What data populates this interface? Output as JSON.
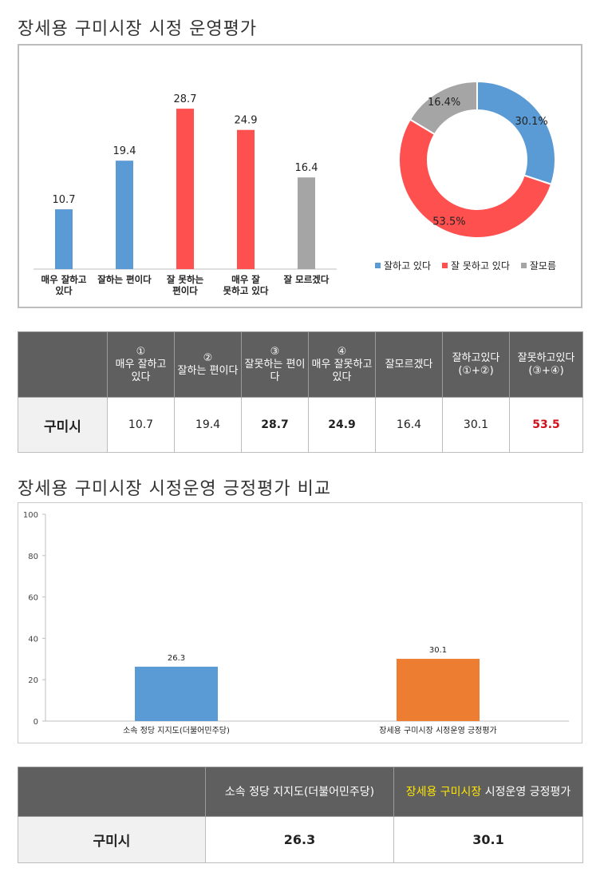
{
  "section1": {
    "title": "장세용 구미시장 시정 운영평가"
  },
  "section2": {
    "title": "장세용 구미시장 시정운영 긍정평가 비교"
  },
  "colors": {
    "blue": "#5b9bd5",
    "red": "#ff5050",
    "gray": "#a5a5a5",
    "orange": "#ed7d31",
    "dark_header": "#5f5f5f",
    "highlight": "#ffe600",
    "red_text": "#d0111b"
  },
  "chart_data": [
    {
      "type": "bar",
      "categories": [
        "매우 잘하고 있다",
        "잘하는 편이다",
        "잘 못하는 편이다",
        "매우 잘 못하고 있다",
        "잘 모르겠다"
      ],
      "values": [
        10.7,
        19.4,
        28.7,
        24.9,
        16.4
      ],
      "data_labels": [
        "10.7",
        "19.4",
        "28.7",
        "24.9",
        "16.4"
      ],
      "bar_colors": [
        "#5b9bd5",
        "#5b9bd5",
        "#ff5050",
        "#ff5050",
        "#a5a5a5"
      ],
      "ylim": [
        0,
        35
      ],
      "grid": false,
      "xlabel": "",
      "ylabel": ""
    },
    {
      "type": "pie",
      "donut": true,
      "labels": [
        "잘하고 있다",
        "잘 못하고 있다",
        "잘모름"
      ],
      "values": [
        30.1,
        53.5,
        16.4
      ],
      "data_labels": [
        "30.1%",
        "53.5%",
        "16.4%"
      ],
      "colors": [
        "#5b9bd5",
        "#ff5050",
        "#a5a5a5"
      ],
      "legend": "bottom"
    },
    {
      "type": "bar",
      "categories": [
        "소속 정당 지지도(더불어민주당)",
        "장세용 구미시장 시정운영 긍정평가"
      ],
      "values": [
        26.3,
        30.1
      ],
      "data_labels": [
        "26.3",
        "30.1"
      ],
      "bar_colors": [
        "#5b9bd5",
        "#ed7d31"
      ],
      "ylim": [
        0,
        100
      ],
      "yticks": [
        "0",
        "20",
        "40",
        "60",
        "80",
        "100"
      ],
      "grid": false,
      "xlabel": "",
      "ylabel": ""
    }
  ],
  "table1": {
    "headers": [
      {
        "num": "①",
        "text": "매우 잘하고 있다"
      },
      {
        "num": "②",
        "text": "잘하는 편이다"
      },
      {
        "num": "③",
        "text": "잘못하는 편이다"
      },
      {
        "num": "④",
        "text": "매우 잘못하고 있다"
      },
      {
        "num": "",
        "text": "잘모르겠다"
      },
      {
        "num": "",
        "text": "잘하고있다 (①+②)"
      },
      {
        "num": "",
        "text": "잘못하고있다 (③+④)"
      }
    ],
    "row_label": "구미시",
    "values": [
      "10.7",
      "19.4",
      "28.7",
      "24.9",
      "16.4",
      "30.1",
      "53.5"
    ]
  },
  "table2": {
    "header1": "소속 정당 지지도(더불어민주당)",
    "header2_highlight": "장세용 구미시장",
    "header2_rest": " 시정운영 긍정평가",
    "row_label": "구미시",
    "values": [
      "26.3",
      "30.1"
    ]
  }
}
